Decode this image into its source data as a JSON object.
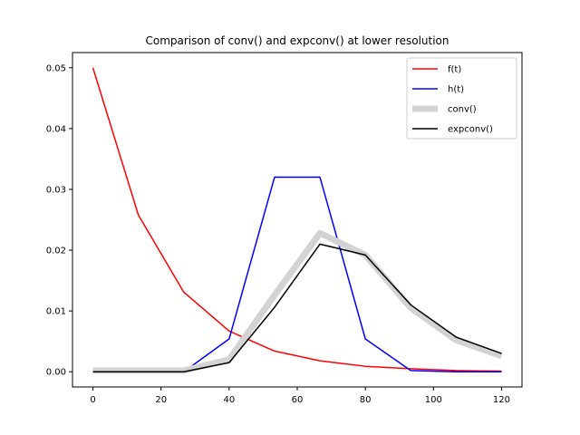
{
  "chart_data": {
    "type": "line",
    "title": "Comparison of conv() and expconv() at lower resolution",
    "xlabel": "",
    "ylabel": "",
    "xlim": [
      -6,
      126
    ],
    "ylim": [
      -0.0025,
      0.0525
    ],
    "xticks": [
      0,
      20,
      40,
      60,
      80,
      100,
      120
    ],
    "yticks": [
      0.0,
      0.01,
      0.02,
      0.03,
      0.04,
      0.05
    ],
    "xtick_labels": [
      "0",
      "20",
      "40",
      "60",
      "80",
      "100",
      "120"
    ],
    "ytick_labels": [
      "0.00",
      "0.01",
      "0.02",
      "0.03",
      "0.04",
      "0.05"
    ],
    "grid": false,
    "legend_position": "top-right",
    "x": [
      0,
      13.33,
      26.67,
      40,
      53.33,
      66.67,
      80,
      93.33,
      106.67,
      120
    ],
    "series": [
      {
        "name": "f(t)",
        "color": "#ff0000",
        "width": 1.5,
        "values": [
          0.05,
          0.0258,
          0.0131,
          0.0067,
          0.0034,
          0.0018,
          0.0009,
          0.0005,
          0.0002,
          0.0001
        ]
      },
      {
        "name": "h(t)",
        "color": "#0000ff",
        "width": 1.5,
        "values": [
          0.0,
          0.0,
          0.0,
          0.0054,
          0.032,
          0.032,
          0.0054,
          0.0002,
          0.0,
          0.0
        ]
      },
      {
        "name": "conv()",
        "color": "#d3d3d3",
        "width": 7,
        "values": [
          0.0002,
          0.0002,
          0.0002,
          0.002,
          0.0126,
          0.0228,
          0.0192,
          0.0105,
          0.0052,
          0.0026
        ]
      },
      {
        "name": "expconv()",
        "color": "#000000",
        "width": 1.5,
        "values": [
          0.0,
          0.0,
          0.0,
          0.0015,
          0.0106,
          0.021,
          0.0192,
          0.011,
          0.0057,
          0.003
        ]
      }
    ]
  }
}
